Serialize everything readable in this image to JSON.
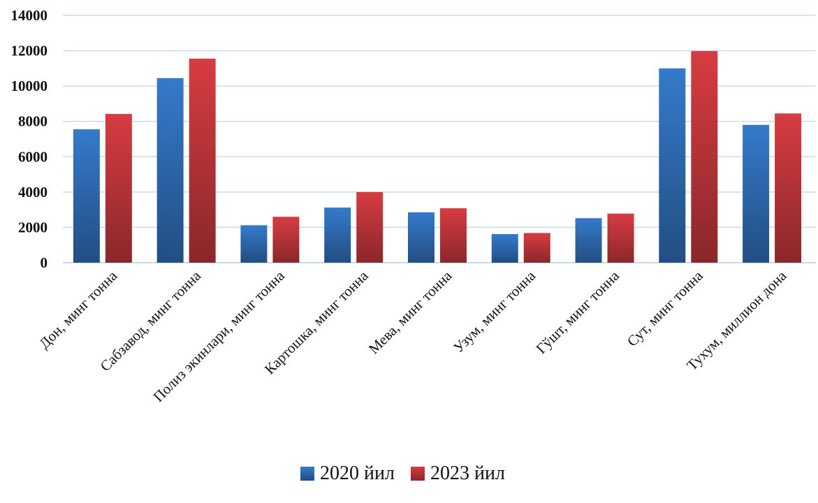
{
  "chart_data": {
    "type": "bar",
    "title": "",
    "xlabel": "",
    "ylabel": "",
    "ylim": [
      0,
      14000
    ],
    "yticks": [
      0,
      2000,
      4000,
      6000,
      8000,
      10000,
      12000,
      14000
    ],
    "grid": true,
    "legend_position": "bottom",
    "categories": [
      "Дон,  минг тонна",
      "Сабзавод, минг тонна",
      "Полиз экинлари, минг тонна",
      "Картошка, минг тонна",
      "Мева, минг тонна",
      "Узум, минг тонна",
      "Гўшт, минг тонна",
      "Сут, минг тонна",
      "Тухум, миллион дона"
    ],
    "series": [
      {
        "name": "2020 йил",
        "color": "#2f6db5",
        "values": [
          7550,
          10450,
          2120,
          3120,
          2850,
          1620,
          2520,
          11000,
          7800
        ]
      },
      {
        "name": "2023 йил",
        "color": "#c0363a",
        "values": [
          8420,
          11550,
          2600,
          4000,
          3080,
          1680,
          2780,
          11980,
          8450
        ]
      }
    ]
  }
}
